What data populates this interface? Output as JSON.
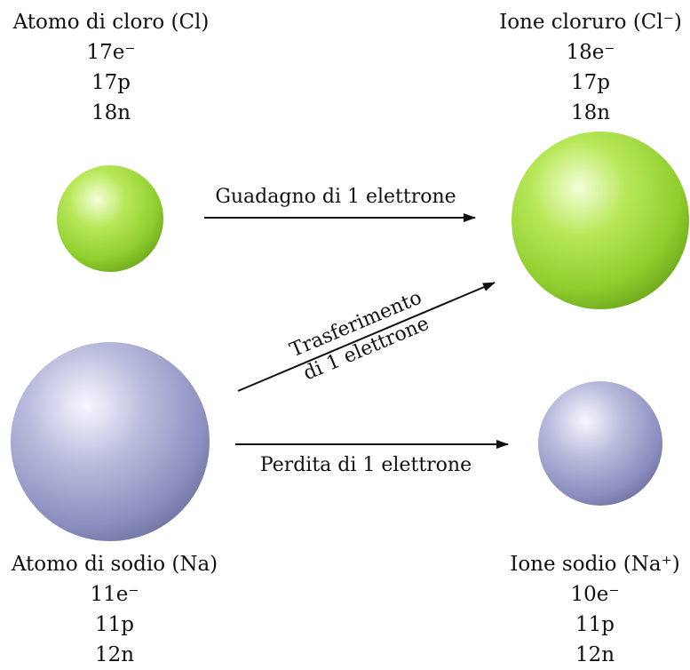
{
  "chlorine_atom": {
    "title": "Atomo di cloro (Cl)",
    "electrons": "17e⁻",
    "protons": "17p",
    "neutrons": "18n"
  },
  "chloride_ion": {
    "title": "Ione cloruro (Cl⁻)",
    "electrons": "18e⁻",
    "protons": "17p",
    "neutrons": "18n"
  },
  "sodium_atom": {
    "title": "Atomo di sodio (Na)",
    "electrons": "11e⁻",
    "protons": "11p",
    "neutrons": "12n"
  },
  "sodium_ion": {
    "title": "Ione sodio (Na⁺)",
    "electrons": "10e⁻",
    "protons": "11p",
    "neutrons": "12n"
  },
  "arrows": {
    "gain": "Guadagno di 1 elettrone",
    "transfer_line1": "Trasferimento",
    "transfer_line2": "di 1 elettrone",
    "loss": "Perdita di 1 elettrone"
  },
  "colors": {
    "chlorine": "#a6dc4a",
    "sodium": "#a9abcf"
  }
}
